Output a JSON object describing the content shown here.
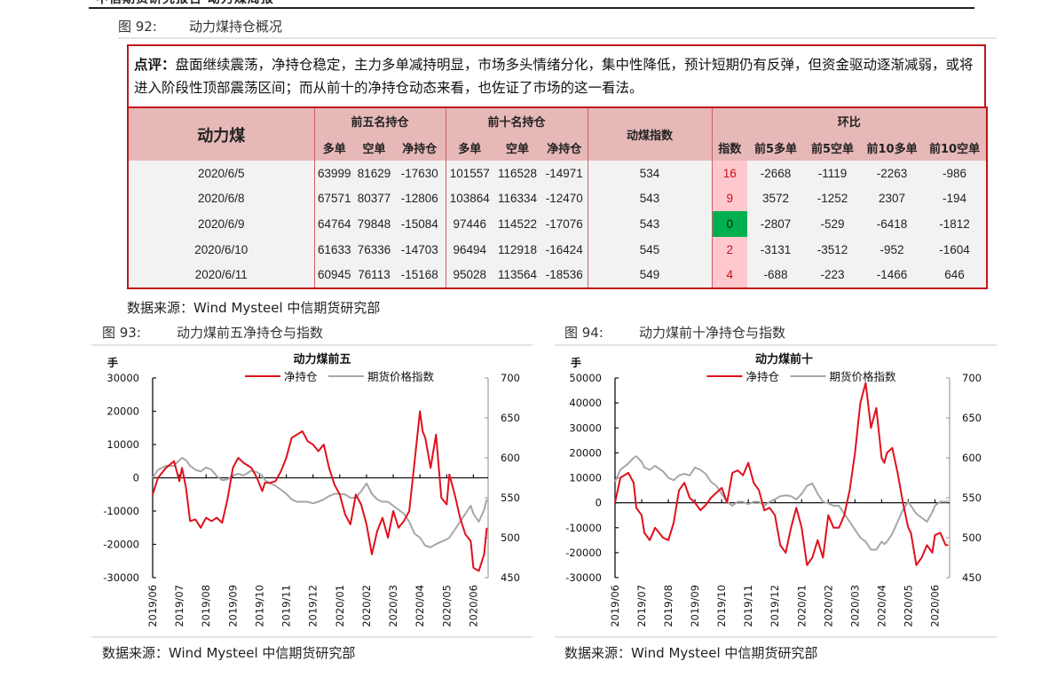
{
  "header": {
    "cut_text": "中信期货研究报告 动力煤周报"
  },
  "fig92": {
    "num": "图 92:",
    "title": "动力煤持仓概况",
    "comment_label": "点评：",
    "comment_text": "盘面继续震荡，净持仓稳定，主力多单减持明显，市场多头情绪分化，集中性降低，预计短期仍有反弹，但资金驱动逐渐减弱，或将进入阶段性顶部震荡区间；而从前十的净持仓动态来看，也佐证了市场的这一看法。",
    "table": {
      "corner": "动力煤",
      "group_top5": "前五名持仓",
      "group_top10": "前十名持仓",
      "col_index": "动煤指数",
      "group_chg": "环比",
      "sub_top5": [
        "多单",
        "空单",
        "净持仓"
      ],
      "sub_top10": [
        "多单",
        "空单",
        "净持仓"
      ],
      "sub_chg": [
        "指数",
        "前5多单",
        "前5空单",
        "前10多单",
        "前10空单"
      ],
      "rows": [
        {
          "date": "2020/6/5",
          "t5": [
            "63999",
            "81629",
            "-17630"
          ],
          "t10": [
            "101557",
            "116528",
            "-14971"
          ],
          "index": "534",
          "chg": [
            "16",
            "-2668",
            "-1119",
            "-2263",
            "-986"
          ],
          "chg_color": "red"
        },
        {
          "date": "2020/6/8",
          "t5": [
            "67571",
            "80377",
            "-12806"
          ],
          "t10": [
            "103864",
            "116334",
            "-12470"
          ],
          "index": "543",
          "chg": [
            "9",
            "3572",
            "-1252",
            "2307",
            "-194"
          ],
          "chg_color": "red"
        },
        {
          "date": "2020/6/9",
          "t5": [
            "64764",
            "79848",
            "-15084"
          ],
          "t10": [
            "97446",
            "114522",
            "-17076"
          ],
          "index": "543",
          "chg": [
            "0",
            "-2807",
            "-529",
            "-6418",
            "-1812"
          ],
          "chg_color": "green"
        },
        {
          "date": "2020/6/10",
          "t5": [
            "61633",
            "76336",
            "-14703"
          ],
          "t10": [
            "96494",
            "112918",
            "-16424"
          ],
          "index": "545",
          "chg": [
            "2",
            "-3131",
            "-3512",
            "-952",
            "-1604"
          ],
          "chg_color": "red"
        },
        {
          "date": "2020/6/11",
          "t5": [
            "60945",
            "76113",
            "-15168"
          ],
          "t10": [
            "95028",
            "113564",
            "-18536"
          ],
          "index": "549",
          "chg": [
            "4",
            "-688",
            "-223",
            "-1466",
            "646"
          ],
          "chg_color": "red"
        }
      ]
    },
    "source": "数据来源：Wind Mysteel 中信期货研究部"
  },
  "fig93": {
    "num": "图 93:",
    "title": "动力煤前五净持仓与指数",
    "source": "数据来源：Wind Mysteel  中信期货研究部"
  },
  "fig94": {
    "num": "图 94:",
    "title": "动力煤前十净持仓与指数",
    "source": "数据来源：Wind Mysteel 中信期货研究部"
  },
  "colors": {
    "accent_red": "#c0161c",
    "net_line": "#e0101c",
    "index_line": "#a6a6a6",
    "header_bg": "#e6b8b7",
    "row_bg": "#f2f2f2",
    "chg_red_bg": "#ffc7ce",
    "chg_green_bg": "#00b050"
  },
  "chart_data": [
    {
      "type": "line",
      "title": "动力煤前五",
      "ylabel": "手",
      "y2label": "",
      "legend": [
        "净持仓",
        "期货价格指数"
      ],
      "legend_position": "top",
      "ylim": [
        -30000,
        30000
      ],
      "yticks": [
        30000,
        20000,
        10000,
        0,
        -10000,
        -20000,
        -30000
      ],
      "y2lim": [
        450,
        700
      ],
      "y2ticks": [
        700,
        650,
        600,
        550,
        500,
        450
      ],
      "xticks": [
        "2019/06",
        "2019/07",
        "2019/08",
        "2019/09",
        "2019/10",
        "2019/11",
        "2019/12",
        "2020/01",
        "2020/02",
        "2020/03",
        "2020/04",
        "2020/05",
        "2020/06"
      ],
      "grid": false,
      "x_pos": [
        0,
        0.2,
        0.5,
        0.8,
        1.0,
        1.1,
        1.25,
        1.4,
        1.6,
        1.8,
        2.0,
        2.2,
        2.4,
        2.6,
        2.8,
        3.0,
        3.2,
        3.4,
        3.5,
        3.7,
        3.9,
        4.1,
        4.2,
        4.4,
        4.6,
        4.8,
        5.0,
        5.2,
        5.4,
        5.6,
        5.8,
        6.0,
        6.2,
        6.4,
        6.6,
        6.8,
        7.0,
        7.2,
        7.4,
        7.6,
        7.8,
        8.0,
        8.2,
        8.4,
        8.6,
        8.8,
        9.0,
        9.2,
        9.4,
        9.6,
        9.8,
        10.0,
        10.1,
        10.2,
        10.4,
        10.6,
        10.8,
        11.0,
        11.1,
        11.3,
        11.5,
        11.7,
        11.9,
        12.0,
        12.2,
        12.4,
        12.5
      ],
      "series": [
        {
          "name": "净持仓",
          "axis": "left",
          "values": [
            -5000,
            0,
            3000,
            5000,
            -1000,
            3000,
            -3000,
            -13000,
            -12500,
            -15000,
            -12000,
            -13000,
            -12000,
            -13500,
            -6500,
            3000,
            6000,
            4500,
            4000,
            3000,
            0,
            -4000,
            -1500,
            -1500,
            -1000,
            2000,
            6000,
            12000,
            13000,
            14000,
            11000,
            10000,
            8000,
            10000,
            3000,
            -2000,
            -5000,
            -11000,
            -14000,
            -5000,
            -8000,
            -14000,
            -23000,
            -16000,
            -12000,
            -18000,
            -10000,
            -15000,
            -13000,
            -10000,
            5000,
            20000,
            14000,
            12000,
            3000,
            13000,
            -6000,
            -8000,
            1000,
            -5000,
            -12000,
            -17000,
            -19000,
            -27000,
            -28000,
            -23000,
            -15000
          ],
          "color": "#e0101c"
        },
        {
          "name": "期货价格指数",
          "axis": "right",
          "values": [
            575,
            585,
            590,
            590,
            597,
            600,
            597,
            590,
            585,
            583,
            588,
            585,
            577,
            572,
            573,
            578,
            580,
            578,
            580,
            584,
            582,
            578,
            572,
            568,
            565,
            560,
            555,
            548,
            545,
            545,
            545,
            543,
            545,
            548,
            552,
            555,
            555,
            554,
            550,
            550,
            558,
            568,
            555,
            548,
            545,
            545,
            540,
            535,
            530,
            520,
            505,
            500,
            495,
            490,
            488,
            492,
            495,
            498,
            500,
            510,
            520,
            530,
            540,
            530,
            520,
            535,
            548
          ],
          "color": "#a6a6a6"
        }
      ]
    },
    {
      "type": "line",
      "title": "动力煤前十",
      "ylabel": "手",
      "y2label": "",
      "legend": [
        "净持仓",
        "期货价格指数"
      ],
      "legend_position": "top",
      "ylim": [
        -30000,
        50000
      ],
      "yticks": [
        50000,
        40000,
        30000,
        20000,
        10000,
        0,
        -10000,
        -20000,
        -30000
      ],
      "y2lim": [
        450,
        700
      ],
      "y2ticks": [
        700,
        650,
        600,
        550,
        500,
        450
      ],
      "xticks": [
        "2019/06",
        "2019/07",
        "2019/08",
        "2019/09",
        "2019/10",
        "2019/11",
        "2019/12",
        "2020/01",
        "2020/02",
        "2020/03",
        "2020/04",
        "2020/05",
        "2020/06"
      ],
      "grid": false,
      "x_pos": [
        0,
        0.2,
        0.5,
        0.7,
        0.8,
        1.0,
        1.1,
        1.3,
        1.5,
        1.8,
        2.0,
        2.2,
        2.4,
        2.6,
        2.8,
        3.0,
        3.2,
        3.4,
        3.6,
        3.8,
        4.0,
        4.2,
        4.4,
        4.6,
        4.8,
        5.0,
        5.2,
        5.4,
        5.6,
        5.8,
        6.0,
        6.2,
        6.4,
        6.6,
        6.8,
        7.0,
        7.2,
        7.4,
        7.6,
        7.8,
        8.0,
        8.2,
        8.4,
        8.6,
        8.8,
        9.0,
        9.2,
        9.4,
        9.6,
        9.8,
        10.0,
        10.1,
        10.2,
        10.4,
        10.6,
        10.8,
        11.0,
        11.1,
        11.3,
        11.5,
        11.7,
        11.9,
        12.0,
        12.2,
        12.4,
        12.5
      ],
      "series": [
        {
          "name": "净持仓",
          "axis": "left",
          "values": [
            0,
            10000,
            12000,
            8000,
            -2000,
            -5000,
            -12000,
            -15000,
            -10000,
            -14000,
            -15000,
            -8000,
            5000,
            8000,
            2000,
            0,
            -3000,
            -1000,
            2000,
            4000,
            6000,
            0,
            12000,
            13000,
            11000,
            16000,
            8000,
            5000,
            -3000,
            -2000,
            -5000,
            -17000,
            -20000,
            -10000,
            -2000,
            -10000,
            -25000,
            -22000,
            -15000,
            -22000,
            -5000,
            -10000,
            -10000,
            -5000,
            5000,
            20000,
            40000,
            48000,
            30000,
            38000,
            18000,
            16000,
            20000,
            22000,
            12000,
            0,
            -10000,
            -12000,
            -25000,
            -22000,
            -17000,
            -20000,
            -13000,
            -12000,
            -17000,
            -17000
          ],
          "color": "#e0101c"
        },
        {
          "name": "期货价格指数",
          "axis": "right",
          "values": [
            570,
            585,
            593,
            600,
            602,
            595,
            588,
            585,
            590,
            583,
            575,
            572,
            578,
            580,
            578,
            588,
            585,
            580,
            570,
            565,
            555,
            545,
            540,
            545,
            545,
            542,
            545,
            545,
            540,
            545,
            548,
            552,
            553,
            552,
            548,
            555,
            565,
            568,
            555,
            545,
            543,
            540,
            540,
            530,
            520,
            510,
            500,
            495,
            485,
            485,
            495,
            492,
            495,
            505,
            520,
            535,
            545,
            540,
            530,
            525,
            520,
            532,
            540,
            545,
            545,
            545
          ],
          "color": "#a6a6a6"
        }
      ]
    }
  ]
}
